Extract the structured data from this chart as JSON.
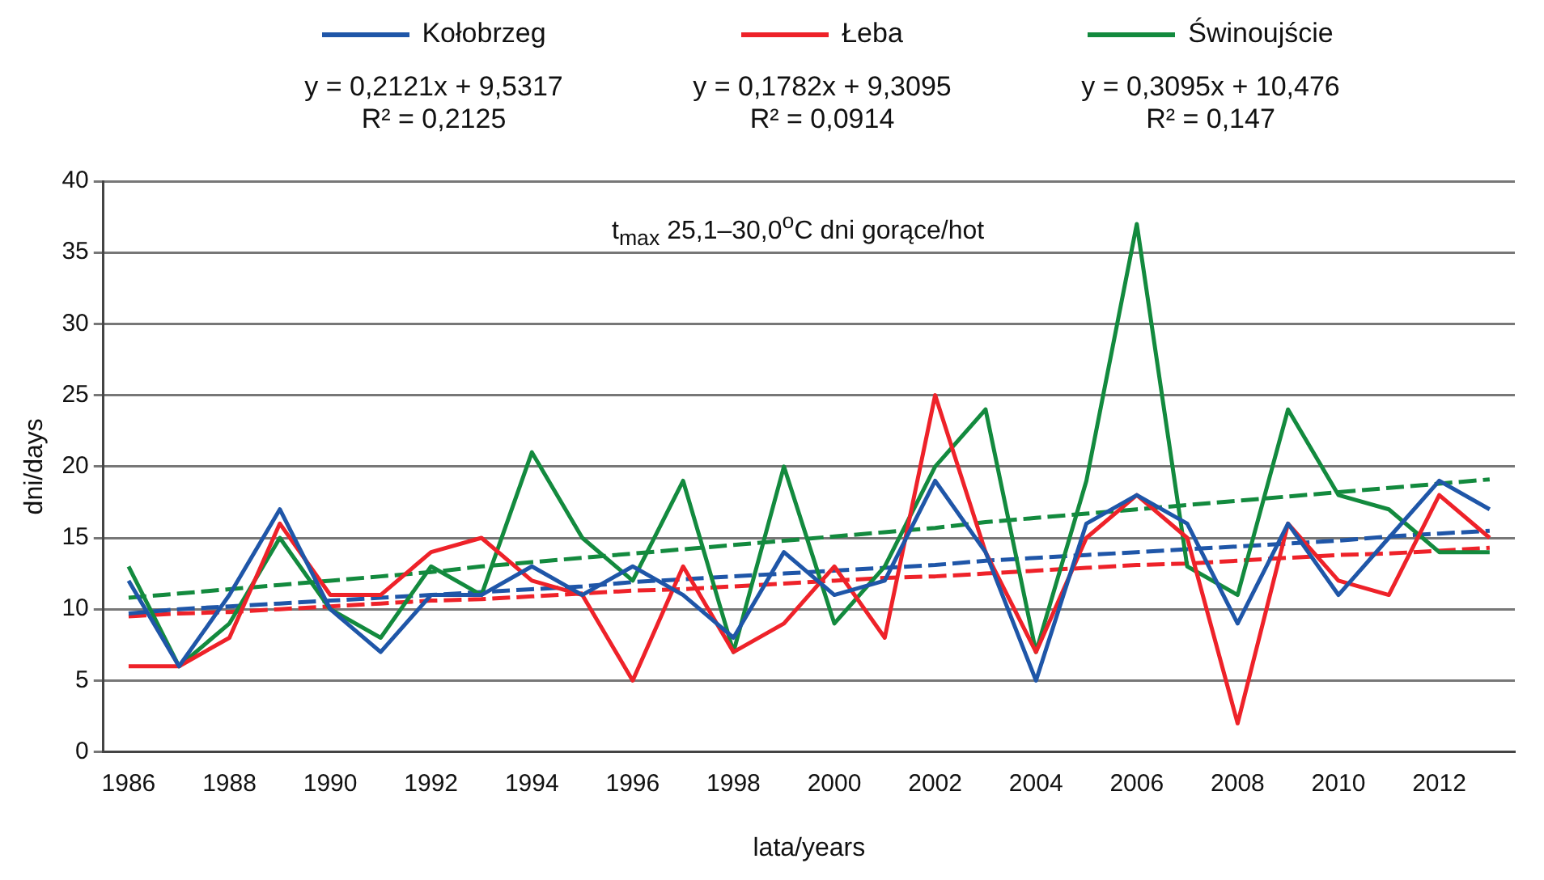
{
  "chart_data": {
    "type": "line",
    "title": "t$_{max}$ 25,1–30,0$^{o}$C dni gorące/hot",
    "xlabel": "lata/years",
    "ylabel": "dni/days",
    "categories": [
      "1986",
      null,
      "1988",
      null,
      "1990",
      null,
      "1992",
      null,
      "1994",
      null,
      "1996",
      null,
      "1998",
      null,
      "2000",
      null,
      "2002",
      null,
      "2004",
      null,
      "2006",
      null,
      "2008",
      null,
      "2010",
      null,
      "2012",
      null
    ],
    "series": [
      {
        "name": "Kołobrzeg",
        "color": "#1f56a8",
        "values": [
          12,
          6,
          11,
          17,
          10,
          7,
          11,
          11,
          13,
          11,
          13,
          11,
          8,
          14,
          11,
          12,
          19,
          14,
          5,
          16,
          18,
          16,
          9,
          16,
          11,
          15,
          19,
          17
        ]
      },
      {
        "name": "Łeba",
        "color": "#ee2229",
        "values": [
          6,
          6,
          8,
          16,
          11,
          11,
          14,
          15,
          12,
          11,
          5,
          13,
          7,
          9,
          13,
          8,
          25,
          14,
          7,
          15,
          18,
          15,
          2,
          16,
          12,
          11,
          18,
          15
        ]
      },
      {
        "name": "Świnoujście",
        "color": "#138a3e",
        "values": [
          13,
          6,
          9,
          15,
          10,
          8,
          13,
          11,
          21,
          15,
          12,
          19,
          7,
          20,
          9,
          13,
          20,
          24,
          7,
          19,
          37,
          13,
          11,
          24,
          18,
          17,
          14,
          14
        ]
      },
      {
        "type": "line",
        "line_style": "dashed",
        "color": "#1f56a8",
        "values": [
          9.7,
          10,
          10.2,
          10.4,
          10.6,
          10.8,
          11,
          11.2,
          11.4,
          11.6,
          11.9,
          12.1,
          12.3,
          12.5,
          12.7,
          12.9,
          13.1,
          13.4,
          13.6,
          13.8,
          14,
          14.2,
          14.4,
          14.6,
          14.8,
          15.1,
          15.3,
          15.5
        ]
      },
      {
        "type": "line",
        "line_style": "dashed",
        "color": "#ee2229",
        "values": [
          9.5,
          9.7,
          9.8,
          10,
          10.2,
          10.4,
          10.6,
          10.7,
          10.9,
          11.1,
          11.3,
          11.4,
          11.6,
          11.8,
          12,
          12.2,
          12.3,
          12.5,
          12.7,
          12.9,
          13.1,
          13.2,
          13.4,
          13.6,
          13.8,
          13.9,
          14.1,
          14.3
        ]
      },
      {
        "type": "line",
        "line_style": "dashed",
        "color": "#138a3e",
        "values": [
          10.8,
          11.1,
          11.4,
          11.7,
          12,
          12.3,
          12.6,
          13,
          13.3,
          13.6,
          13.9,
          14.2,
          14.5,
          14.8,
          15.1,
          15.4,
          15.7,
          16.1,
          16.4,
          16.7,
          17,
          17.3,
          17.6,
          17.9,
          18.2,
          18.5,
          18.8,
          19.1
        ]
      }
    ],
    "annotations": [
      "y = 0,2121x + 9,5317",
      "R² = 0,2125",
      "y = 0,1782x + 9,3095",
      "R² = 0,0914",
      "y = 0,3095x + 10,476",
      "R² = 0,147"
    ],
    "ylim": [
      0,
      40
    ],
    "yticks": [
      0,
      5,
      10,
      15,
      20,
      25,
      30,
      35,
      40
    ],
    "grid": "y",
    "legend": "top",
    "marker": "none",
    "line_style": "solid"
  }
}
